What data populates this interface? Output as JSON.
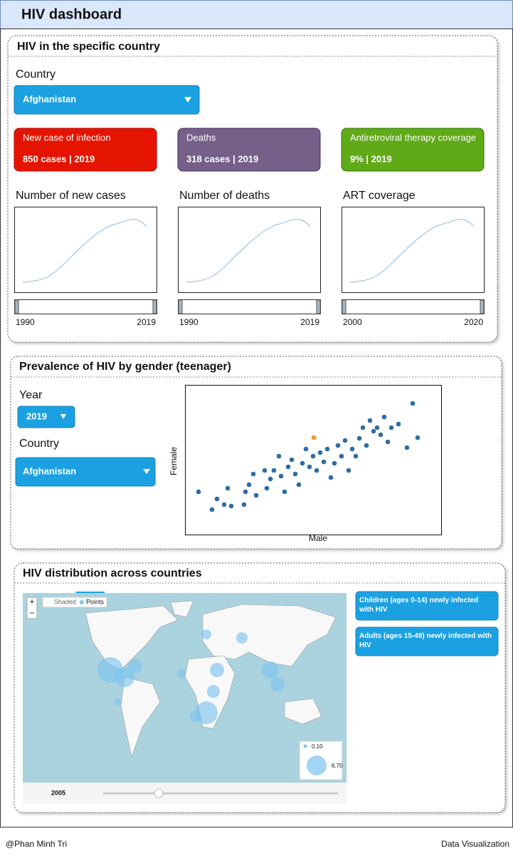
{
  "header": {
    "title": "HIV dashboard"
  },
  "country_section": {
    "title": "HIV in the specific country",
    "country_label": "Country",
    "country_select": "Afghanistan",
    "cards": [
      {
        "label": "New case of infection",
        "value": "850 cases | 2019"
      },
      {
        "label": "Deaths",
        "value": "318 cases | 2019"
      },
      {
        "label": "Antiretroviral therapy coverage",
        "value": "9% | 2019"
      }
    ],
    "charts": [
      {
        "title": "Number of new cases",
        "range_start": "1990",
        "range_end": "2019"
      },
      {
        "title": "Number of deaths",
        "range_start": "1990",
        "range_end": "2019"
      },
      {
        "title": "ART coverage",
        "range_start": "2000",
        "range_end": "2020"
      }
    ]
  },
  "gender_section": {
    "title": "Prevalence of HIV by gender (teenager)",
    "year_label": "Year",
    "year_select": "2019",
    "country_label": "Country",
    "country_select": "Afghanistan",
    "chart_data": {
      "type": "scatter",
      "x_label": "Male",
      "y_label": "Female",
      "xlim": [
        0,
        360
      ],
      "ylim": [
        0,
        210
      ],
      "series": [
        {
          "color": "#2e6da4",
          "x": [
            19,
            38,
            45,
            55,
            60,
            65,
            85,
            83,
            90,
            96,
            100,
            112,
            115,
            120,
            125,
            132,
            135,
            140,
            145,
            150,
            155,
            160,
            165,
            170,
            175,
            180,
            185,
            190,
            195,
            200,
            205,
            210,
            215,
            220,
            225,
            230,
            235,
            240,
            245,
            250,
            255,
            260,
            265,
            270,
            275,
            280,
            285,
            290,
            300,
            312,
            320,
            327
          ],
          "y": [
            60,
            35,
            50,
            42,
            65,
            40,
            60,
            42,
            70,
            85,
            55,
            90,
            65,
            78,
            90,
            110,
            82,
            60,
            95,
            105,
            85,
            70,
            100,
            120,
            95,
            110,
            90,
            115,
            102,
            120,
            80,
            100,
            125,
            110,
            132,
            90,
            120,
            110,
            135,
            150,
            125,
            160,
            145,
            150,
            140,
            165,
            130,
            150,
            155,
            122,
            184,
            136
          ]
        },
        {
          "color": "#f5923e",
          "x": [
            181
          ],
          "y": [
            136
          ]
        }
      ]
    }
  },
  "map_section": {
    "title": "HIV distribution across countries",
    "zoom_in": "+",
    "zoom_out": "−",
    "mode_shaded": "Shaded",
    "mode_points": "Points",
    "legend_min": "0.10",
    "legend_max": "6.70",
    "year": "2005",
    "buttons": [
      "Children (ages 0-14) newly infected with HIV",
      "Adults (ages 15-49) newly infected with HIV"
    ]
  },
  "footer": {
    "author": "@Phan Minh Tri",
    "note": "Data Visualization"
  }
}
